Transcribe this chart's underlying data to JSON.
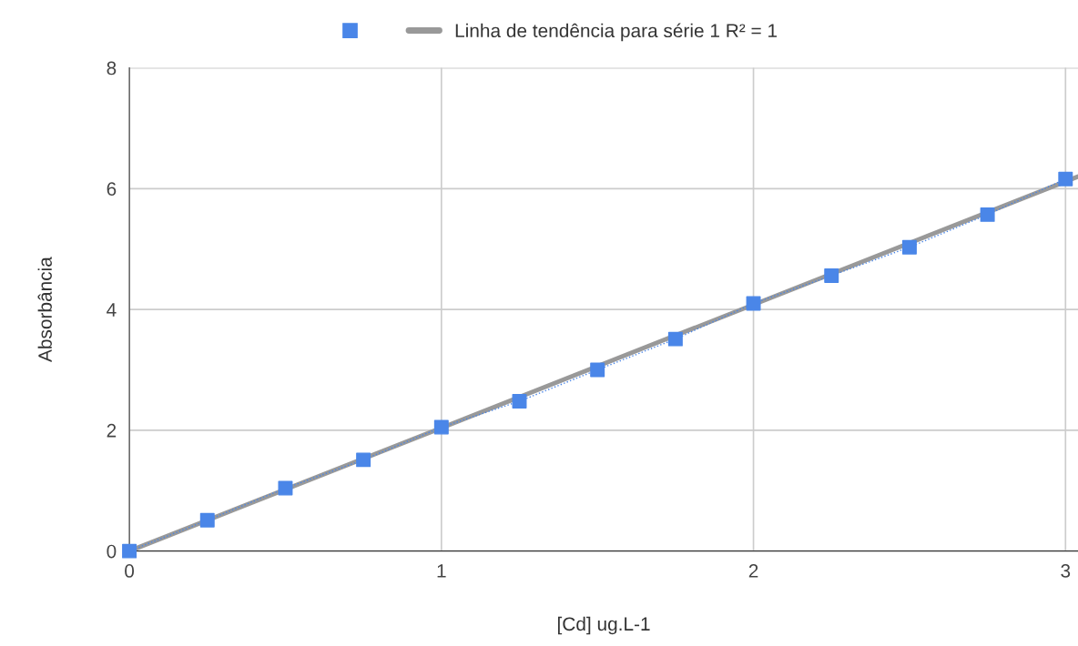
{
  "chart_data": {
    "type": "line",
    "xlabel": "[Cd] ug.L-1",
    "ylabel": "Absorbância",
    "xlim": [
      0,
      3.04
    ],
    "xticks": [
      0,
      1,
      2,
      3
    ],
    "ylim": [
      0,
      8
    ],
    "yticks": [
      0,
      2,
      4,
      6,
      8
    ],
    "grid": true,
    "legend": "top",
    "series": [
      {
        "color": "#4a86e8",
        "marker": "square",
        "line_style": "dotted",
        "x": [
          0,
          0.25,
          0.5,
          0.75,
          1,
          1.25,
          1.5,
          1.75,
          2,
          2.25,
          2.5,
          2.75,
          3
        ],
        "values": [
          0,
          0.51,
          1.04,
          1.51,
          2.05,
          2.48,
          3.0,
          3.51,
          4.1,
          4.56,
          5.03,
          5.57,
          6.16
        ]
      },
      {
        "type": "line",
        "name": "Linha de tendência para série 1 R² = 1",
        "color": "#999999",
        "marker": "none",
        "line_style": "solid",
        "x": [
          0,
          3.04
        ],
        "values": [
          0,
          6.2
        ]
      }
    ]
  }
}
